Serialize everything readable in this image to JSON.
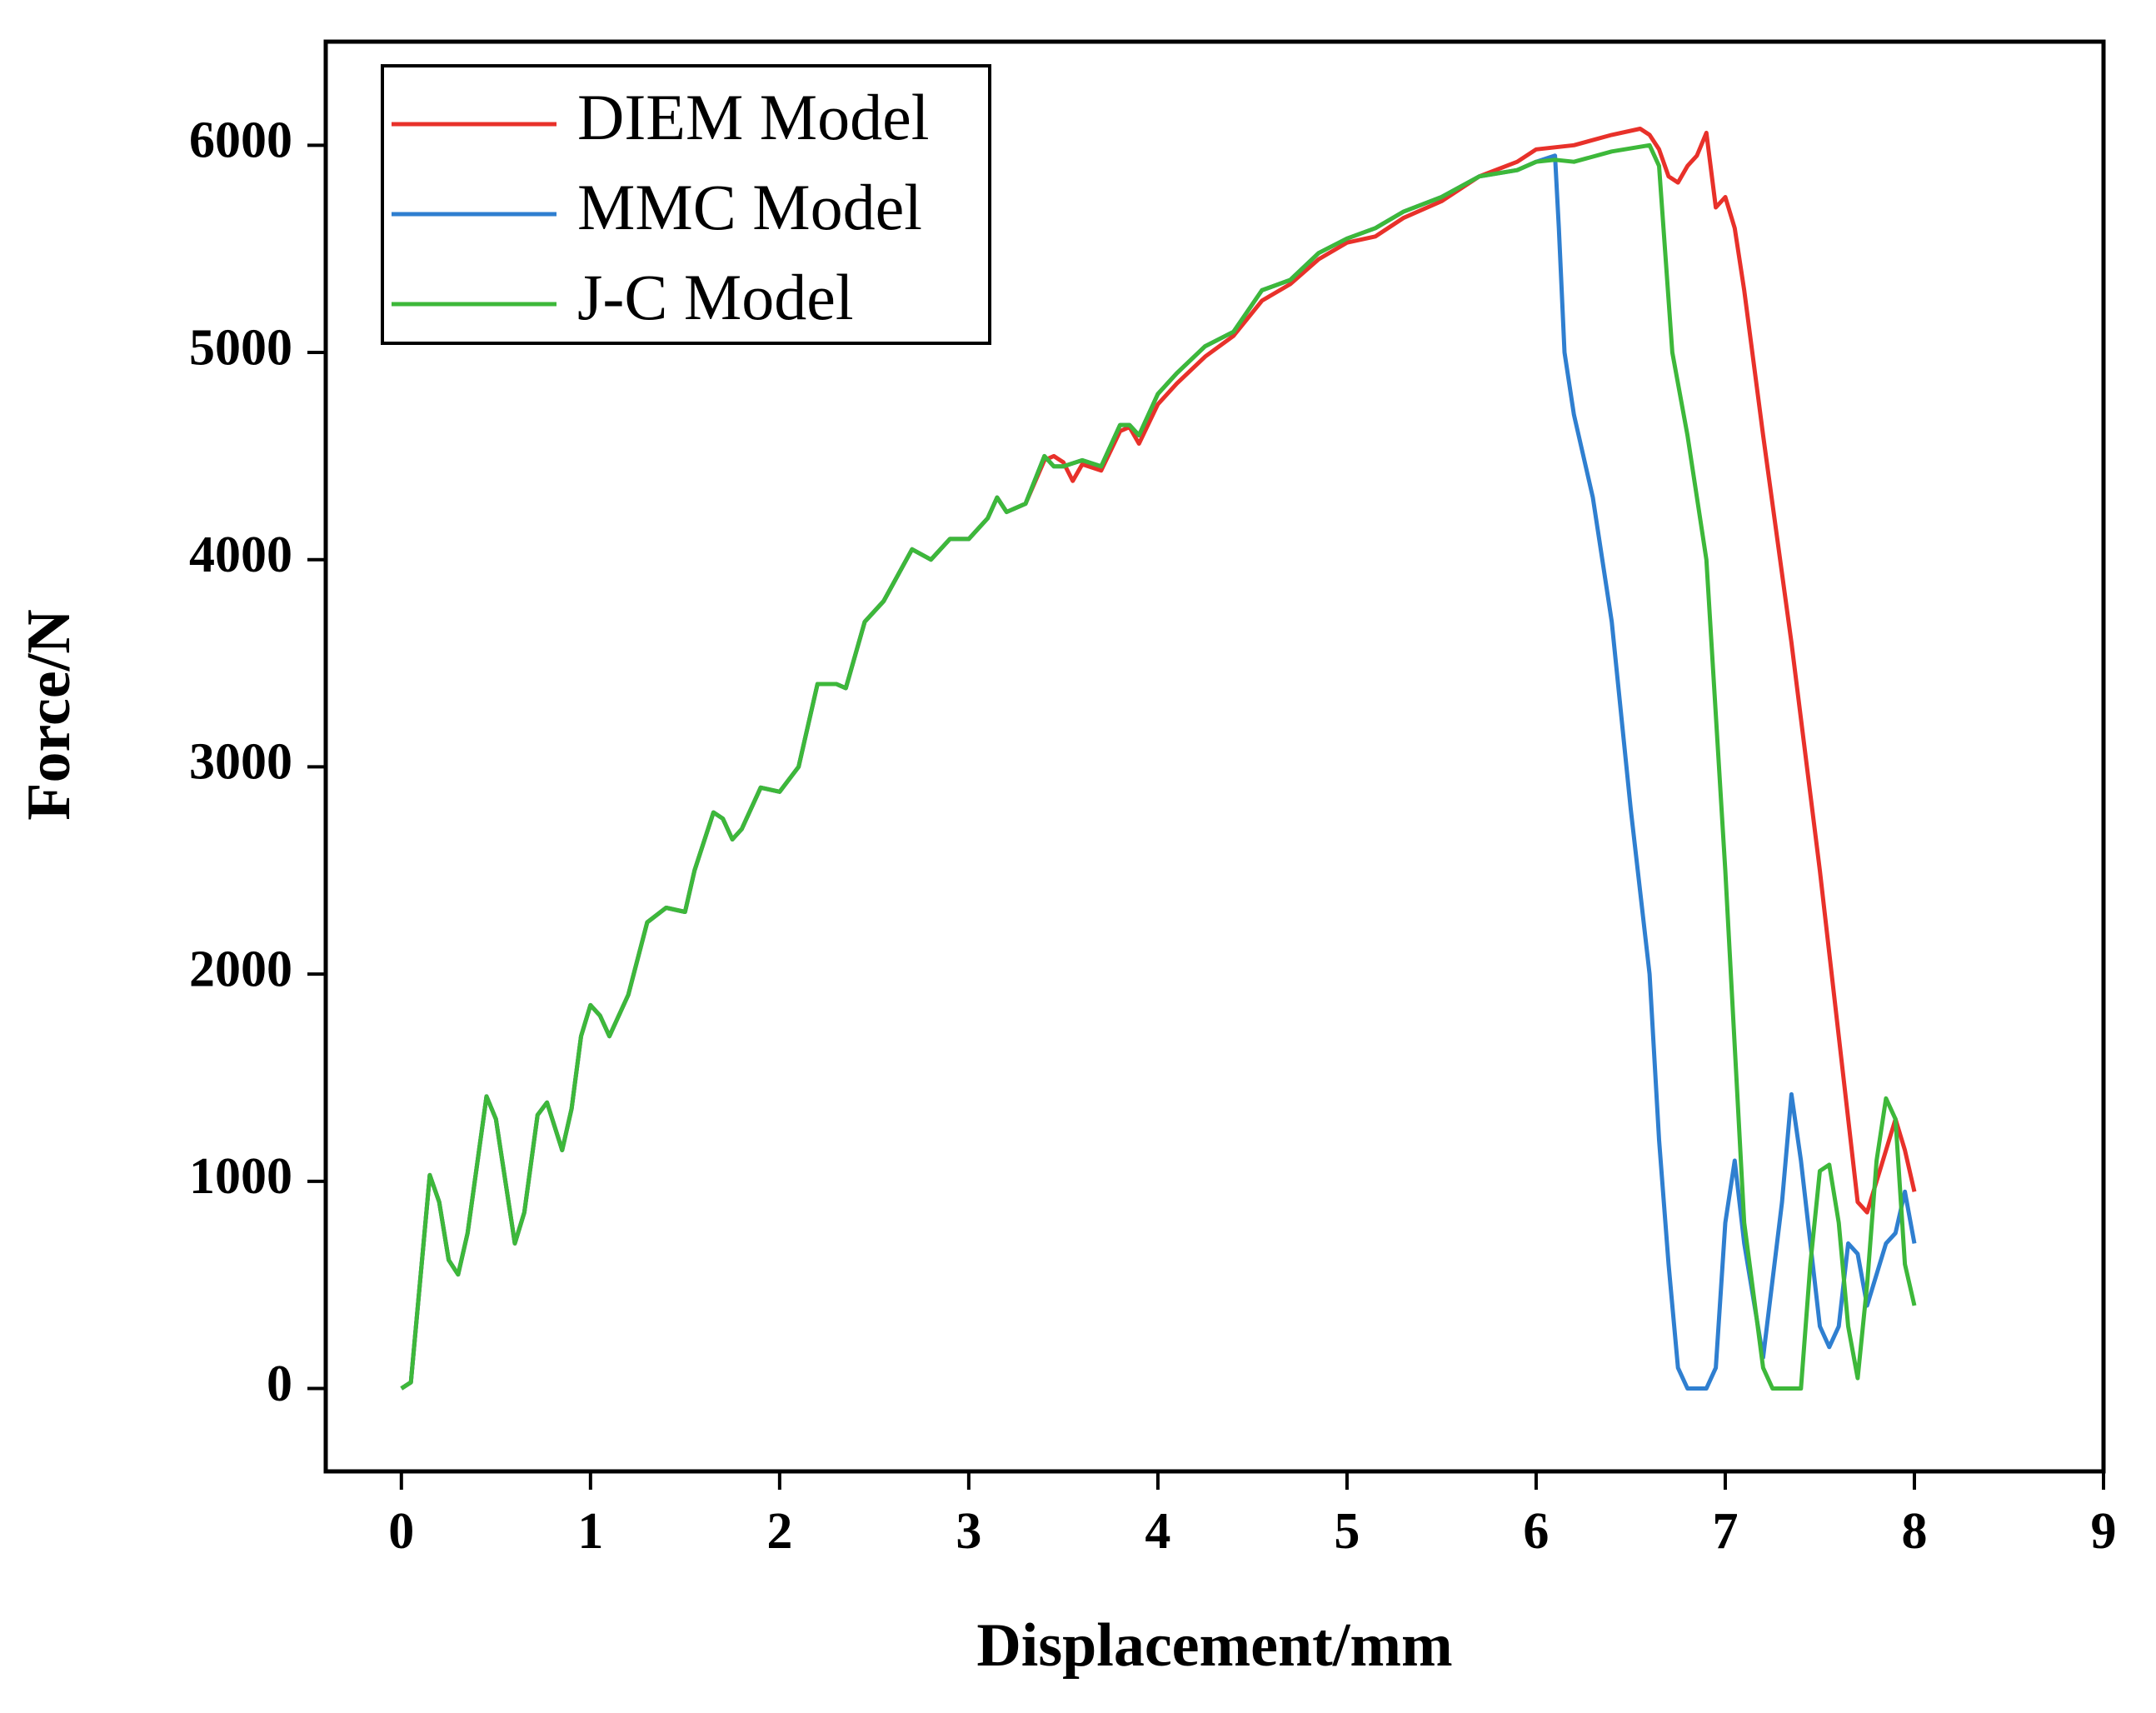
{
  "chart_data": {
    "type": "line",
    "x_label": "Displacement/mm",
    "y_label": "Force/N",
    "xlim": [
      -0.4,
      9.0
    ],
    "ylim": [
      -400,
      6500
    ],
    "xticks": [
      0,
      1,
      2,
      3,
      4,
      5,
      6,
      7,
      8,
      9
    ],
    "yticks": [
      0,
      1000,
      2000,
      3000,
      4000,
      5000,
      6000
    ],
    "legend": "upper left",
    "series": [
      {
        "name": "DIEM Model",
        "color": "#e8312a",
        "x": [
          0,
          0.05,
          0.15,
          0.2,
          0.25,
          0.3,
          0.35,
          0.45,
          0.5,
          0.6,
          0.65,
          0.72,
          0.77,
          0.85,
          0.9,
          0.95,
          1.0,
          1.05,
          1.1,
          1.2,
          1.3,
          1.4,
          1.5,
          1.55,
          1.65,
          1.7,
          1.75,
          1.8,
          1.9,
          2.0,
          2.1,
          2.2,
          2.3,
          2.35,
          2.45,
          2.55,
          2.7,
          2.8,
          2.9,
          3.0,
          3.1,
          3.15,
          3.2,
          3.3,
          3.4,
          3.45,
          3.5,
          3.55,
          3.6,
          3.7,
          3.8,
          3.85,
          3.9,
          4.0,
          4.1,
          4.25,
          4.4,
          4.55,
          4.7,
          4.85,
          5.0,
          5.15,
          5.3,
          5.5,
          5.7,
          5.9,
          6.0,
          6.1,
          6.2,
          6.4,
          6.55,
          6.6,
          6.65,
          6.7,
          6.75,
          6.8,
          6.85,
          6.9,
          6.95,
          7.0,
          7.05,
          7.1,
          7.2,
          7.35,
          7.5,
          7.6,
          7.7,
          7.75,
          7.8,
          7.9,
          7.95,
          8.0
        ],
        "values": [
          0,
          30,
          1030,
          900,
          620,
          550,
          750,
          1410,
          1300,
          700,
          850,
          1320,
          1380,
          1150,
          1350,
          1700,
          1850,
          1800,
          1700,
          1900,
          2250,
          2320,
          2300,
          2500,
          2780,
          2750,
          2650,
          2700,
          2900,
          2880,
          3000,
          3400,
          3400,
          3380,
          3700,
          3800,
          4050,
          4000,
          4100,
          4100,
          4200,
          4300,
          4230,
          4270,
          4480,
          4500,
          4470,
          4380,
          4460,
          4430,
          4620,
          4640,
          4560,
          4750,
          4850,
          4980,
          5080,
          5250,
          5330,
          5450,
          5530,
          5560,
          5650,
          5730,
          5850,
          5920,
          5980,
          5990,
          6000,
          6050,
          6080,
          6050,
          5980,
          5850,
          5820,
          5900,
          5950,
          6060,
          5700,
          5750,
          5600,
          5300,
          4600,
          3600,
          2500,
          1700,
          900,
          850,
          1000,
          1300,
          1150,
          950
        ]
      },
      {
        "name": "MMC Model",
        "color": "#2f7fd0",
        "x": [
          0,
          0.05,
          0.15,
          0.2,
          0.25,
          0.3,
          0.35,
          0.45,
          0.5,
          0.6,
          0.65,
          0.72,
          0.77,
          0.85,
          0.9,
          0.95,
          1.0,
          1.05,
          1.1,
          1.2,
          1.3,
          1.4,
          1.5,
          1.55,
          1.65,
          1.7,
          1.75,
          1.8,
          1.9,
          2.0,
          2.1,
          2.2,
          2.3,
          2.35,
          2.45,
          2.55,
          2.7,
          2.8,
          2.9,
          3.0,
          3.1,
          3.15,
          3.2,
          3.3,
          3.4,
          3.45,
          3.5,
          3.6,
          3.7,
          3.8,
          3.85,
          3.9,
          4.0,
          4.1,
          4.25,
          4.4,
          4.55,
          4.7,
          4.85,
          5.0,
          5.15,
          5.3,
          5.5,
          5.7,
          5.9,
          6.0,
          6.1,
          6.12,
          6.15,
          6.2,
          6.3,
          6.4,
          6.5,
          6.6,
          6.65,
          6.7,
          6.75,
          6.8,
          6.9,
          6.95,
          7.0,
          7.05,
          7.1,
          7.2,
          7.3,
          7.35,
          7.4,
          7.5,
          7.55,
          7.6,
          7.65,
          7.7,
          7.75,
          7.85,
          7.9,
          7.95,
          8.0
        ],
        "values": [
          0,
          30,
          1030,
          900,
          620,
          550,
          750,
          1410,
          1300,
          700,
          850,
          1320,
          1380,
          1150,
          1350,
          1700,
          1850,
          1800,
          1700,
          1900,
          2250,
          2320,
          2300,
          2500,
          2780,
          2750,
          2650,
          2700,
          2900,
          2880,
          3000,
          3400,
          3400,
          3380,
          3700,
          3800,
          4050,
          4000,
          4100,
          4100,
          4200,
          4300,
          4230,
          4270,
          4500,
          4450,
          4450,
          4480,
          4450,
          4650,
          4650,
          4600,
          4800,
          4900,
          5030,
          5100,
          5300,
          5350,
          5480,
          5550,
          5600,
          5680,
          5750,
          5850,
          5880,
          5920,
          5950,
          5600,
          5000,
          4700,
          4300,
          3700,
          2800,
          2000,
          1200,
          600,
          100,
          0,
          0,
          100,
          800,
          1100,
          700,
          150,
          900,
          1420,
          1100,
          300,
          200,
          300,
          700,
          650,
          400,
          700,
          750,
          950,
          700
        ]
      },
      {
        "name": "J-C Model",
        "color": "#3db83a",
        "x": [
          0,
          0.05,
          0.15,
          0.2,
          0.25,
          0.3,
          0.35,
          0.45,
          0.5,
          0.6,
          0.65,
          0.72,
          0.77,
          0.85,
          0.9,
          0.95,
          1.0,
          1.05,
          1.1,
          1.2,
          1.3,
          1.4,
          1.5,
          1.55,
          1.65,
          1.7,
          1.75,
          1.8,
          1.9,
          2.0,
          2.1,
          2.2,
          2.3,
          2.35,
          2.45,
          2.55,
          2.7,
          2.8,
          2.9,
          3.0,
          3.1,
          3.15,
          3.2,
          3.3,
          3.4,
          3.45,
          3.5,
          3.6,
          3.7,
          3.8,
          3.85,
          3.9,
          4.0,
          4.1,
          4.25,
          4.4,
          4.55,
          4.7,
          4.85,
          5.0,
          5.15,
          5.3,
          5.5,
          5.7,
          5.9,
          6.0,
          6.1,
          6.2,
          6.4,
          6.6,
          6.65,
          6.72,
          6.8,
          6.9,
          7.0,
          7.1,
          7.2,
          7.25,
          7.35,
          7.4,
          7.45,
          7.5,
          7.55,
          7.6,
          7.65,
          7.7,
          7.75,
          7.8,
          7.85,
          7.9,
          7.95,
          8.0
        ],
        "values": [
          0,
          30,
          1030,
          900,
          620,
          550,
          750,
          1410,
          1300,
          700,
          850,
          1320,
          1380,
          1150,
          1350,
          1700,
          1850,
          1800,
          1700,
          1900,
          2250,
          2320,
          2300,
          2500,
          2780,
          2750,
          2650,
          2700,
          2900,
          2880,
          3000,
          3400,
          3400,
          3380,
          3700,
          3800,
          4050,
          4000,
          4100,
          4100,
          4200,
          4300,
          4230,
          4270,
          4500,
          4450,
          4450,
          4480,
          4450,
          4650,
          4650,
          4600,
          4800,
          4900,
          5030,
          5100,
          5300,
          5350,
          5480,
          5550,
          5600,
          5680,
          5750,
          5850,
          5880,
          5920,
          5930,
          5920,
          5970,
          6000,
          5900,
          5000,
          4600,
          4000,
          2500,
          800,
          100,
          0,
          0,
          0,
          600,
          1050,
          1080,
          800,
          300,
          50,
          500,
          1100,
          1400,
          1300,
          600,
          400
        ]
      }
    ]
  }
}
